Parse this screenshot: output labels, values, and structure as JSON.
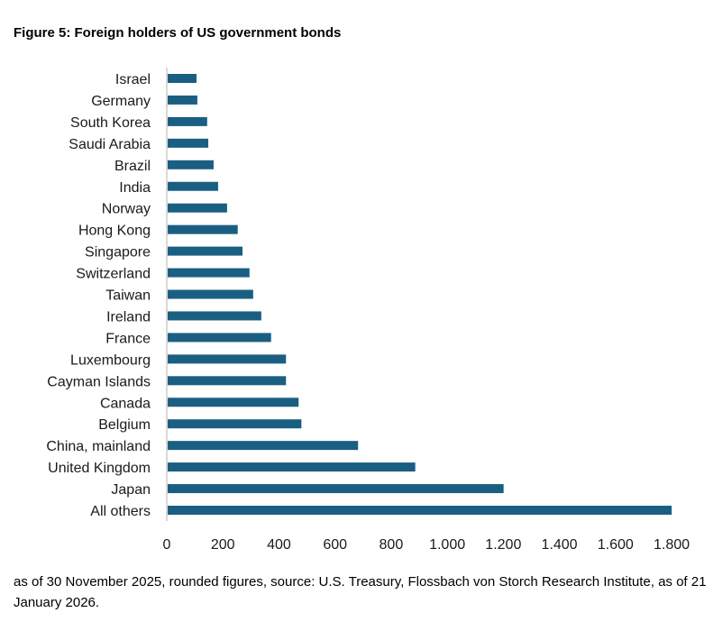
{
  "title": "Figure 5: Foreign holders of US government bonds",
  "footnote": "as of 30 November 2025, rounded figures, source: U.S. Treasury, Flossbach von Storch Research Institute, as of 21 January 2026.",
  "chart_data": {
    "type": "bar",
    "orientation": "horizontal",
    "title": "Figure 5: Foreign holders of US government bonds",
    "xlabel": "",
    "ylabel": "",
    "categories": [
      "Israel",
      "Germany",
      "South Korea",
      "Saudi Arabia",
      "Brazil",
      "India",
      "Norway",
      "Hong Kong",
      "Singapore",
      "Switzerland",
      "Taiwan",
      "Ireland",
      "France",
      "Luxembourg",
      "Cayman Islands",
      "Canada",
      "Belgium",
      "China, mainland",
      "United Kingdom",
      "Japan",
      "All others"
    ],
    "values": [
      106,
      109,
      144,
      148,
      167,
      183,
      215,
      253,
      270,
      295,
      308,
      337,
      372,
      425,
      425,
      470,
      480,
      682,
      886,
      1201,
      1800
    ],
    "xlim": [
      0,
      1800
    ],
    "xticks": [
      0,
      200,
      400,
      600,
      800,
      1000,
      1200,
      1400,
      1600,
      1800
    ],
    "xtick_labels": [
      "0",
      "200",
      "400",
      "600",
      "800",
      "1.000",
      "1.200",
      "1.400",
      "1.600",
      "1.800"
    ],
    "grid": false,
    "legend": "none",
    "bar_color": "#1a5f82",
    "axis_color": "#d9d9d9"
  }
}
